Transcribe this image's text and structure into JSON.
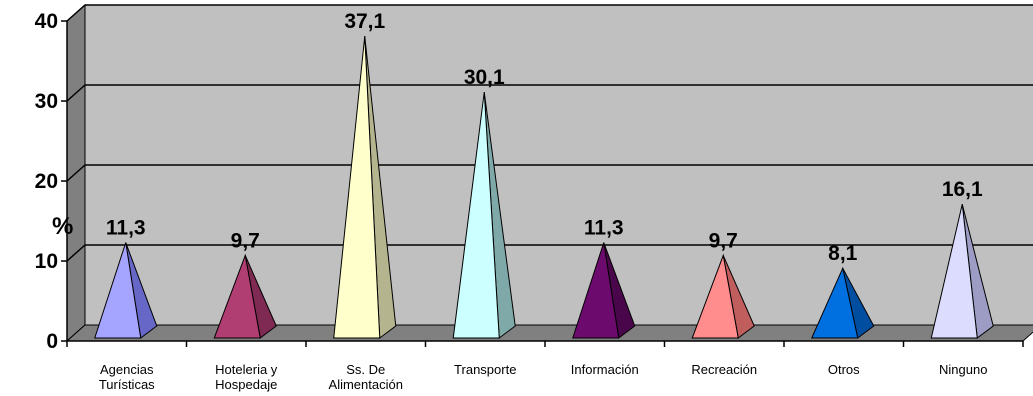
{
  "chart_data": {
    "type": "bar",
    "subtype": "3d-pyramid",
    "categories": [
      [
        "Agencias",
        "Turísticas"
      ],
      [
        "Hoteleria y",
        "Hospedaje"
      ],
      [
        "Ss. De",
        "Alimentación"
      ],
      [
        "Transporte"
      ],
      [
        "Información"
      ],
      [
        "Recreación"
      ],
      [
        "Otros"
      ],
      [
        "Ninguno"
      ]
    ],
    "values": [
      11.3,
      9.7,
      37.1,
      30.1,
      11.3,
      9.7,
      8.1,
      16.1
    ],
    "data_labels": [
      "11,3",
      "9,7",
      "37,1",
      "30,1",
      "11,3",
      "9,7",
      "8,1",
      "16,1"
    ],
    "ylabel": "%",
    "xlabel": "",
    "title": "",
    "ylim": [
      0,
      40
    ],
    "yticks": [
      0,
      10,
      20,
      30,
      40
    ],
    "grid": true,
    "colors": {
      "wall": "#c0c0c0",
      "wall_side": "#808080",
      "floor": "#808080",
      "grid": "#000000",
      "bars": [
        {
          "front": "#a5a5ff",
          "side": "#6767c8"
        },
        {
          "front": "#b03e72",
          "side": "#7e2a52"
        },
        {
          "front": "#ffffcc",
          "side": "#b4b48e"
        },
        {
          "front": "#ccffff",
          "side": "#7fa8a8"
        },
        {
          "front": "#6d0a6d",
          "side": "#4a064a"
        },
        {
          "front": "#ff8d8d",
          "side": "#c05e5e"
        },
        {
          "front": "#0070e0",
          "side": "#004ea0"
        },
        {
          "front": "#dcdcff",
          "side": "#9c9cc4"
        }
      ]
    }
  }
}
